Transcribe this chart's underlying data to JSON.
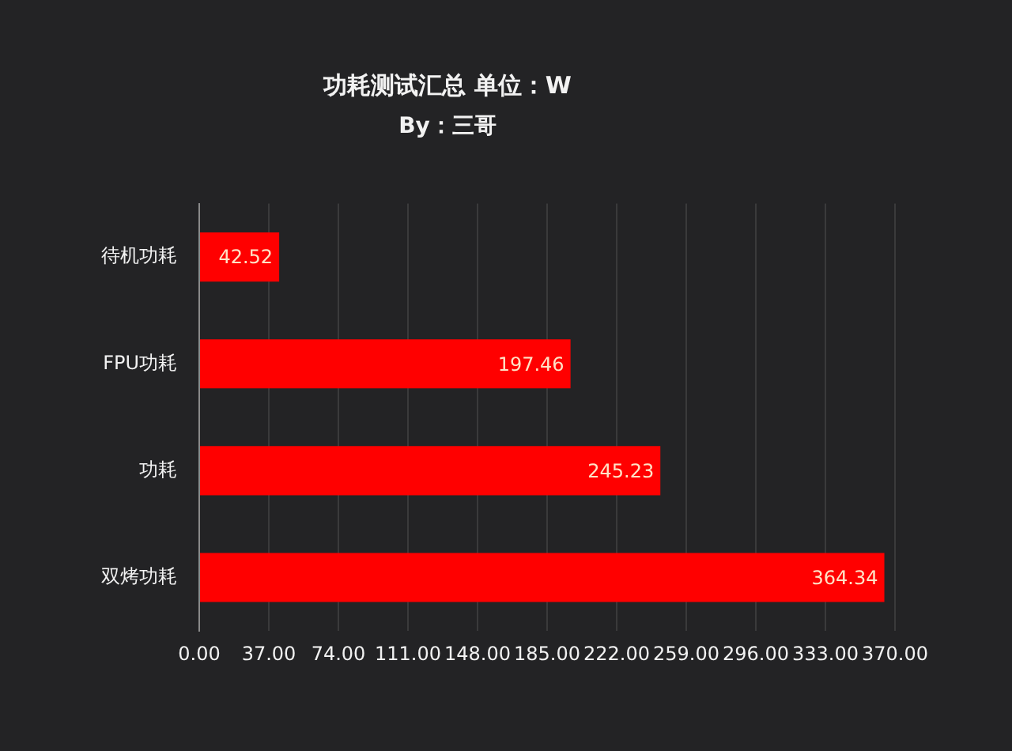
{
  "chart_data": {
    "type": "bar",
    "orientation": "horizontal",
    "title": "功耗测试汇总 单位：W",
    "subtitle": "By：三哥",
    "categories": [
      "待机功耗",
      "FPU功耗",
      "功耗",
      "双烤功耗"
    ],
    "values": [
      42.52,
      197.46,
      245.23,
      364.34
    ],
    "color": "#ff0000",
    "xlim": [
      0,
      370
    ],
    "xticks": [
      {
        "value": 0,
        "label": "0.00"
      },
      {
        "value": 37,
        "label": "37.00"
      },
      {
        "value": 74,
        "label": "74.00"
      },
      {
        "value": 111,
        "label": "111.00"
      },
      {
        "value": 148,
        "label": "148.00"
      },
      {
        "value": 185,
        "label": "185.00"
      },
      {
        "value": 222,
        "label": "222.00"
      },
      {
        "value": 259,
        "label": "259.00"
      },
      {
        "value": 296,
        "label": "296.00"
      },
      {
        "value": 333,
        "label": "333.00"
      },
      {
        "value": 370,
        "label": "370.00"
      }
    ],
    "data_labels": true,
    "grid": "x",
    "legend": false
  }
}
